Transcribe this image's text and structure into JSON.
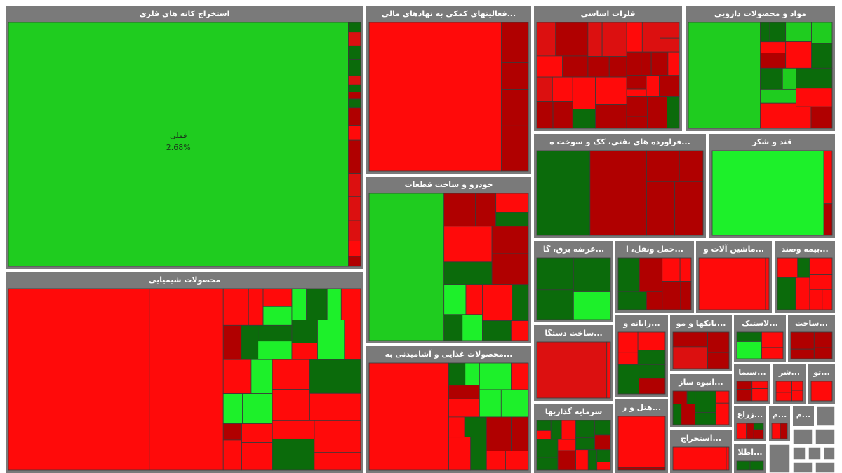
{
  "sectors": [
    {
      "title": "استخراج کانه های فلزی"
    },
    {
      "title": "...فعالیتهای کمکی به نهادهای مالی"
    },
    {
      "title": "فلزات اساسی"
    },
    {
      "title": "مواد و محصولات دارویی"
    },
    {
      "title": "...فراورده های نفتی، کک و سوخت ه"
    },
    {
      "title": "قند و شکر"
    },
    {
      "title": "خودرو و ساخت قطعات"
    },
    {
      "title": "محصولات شیمیایی"
    },
    {
      "title": "...محصولات غذایی و آشامیدنی به"
    },
    {
      "title": "...عرضه برق، گا"
    },
    {
      "title": "...حمل ونقل، ا"
    },
    {
      "title": "...ماشین آلات و"
    },
    {
      "title": "...بیمه وصند"
    },
    {
      "title": "...ساخت دستگا"
    },
    {
      "title": "...رایانه و"
    },
    {
      "title": "...بانکها و مو"
    },
    {
      "title": "...لاستیک"
    },
    {
      "title": "...ساخت"
    },
    {
      "title": "سرمایه گذاریها"
    },
    {
      "title": "...انبوه ساز"
    },
    {
      "title": "...هتل و ر"
    },
    {
      "title": "...استخراج"
    },
    {
      "title": "...سیما"
    },
    {
      "title": "...شر"
    },
    {
      "title": "...تو"
    },
    {
      "title": "...زراع"
    },
    {
      "title": "...م"
    },
    {
      "title": "...م"
    },
    {
      "title": "...اطلا"
    }
  ],
  "highlight": {
    "symbol": "فملی",
    "change": "2.68%"
  }
}
